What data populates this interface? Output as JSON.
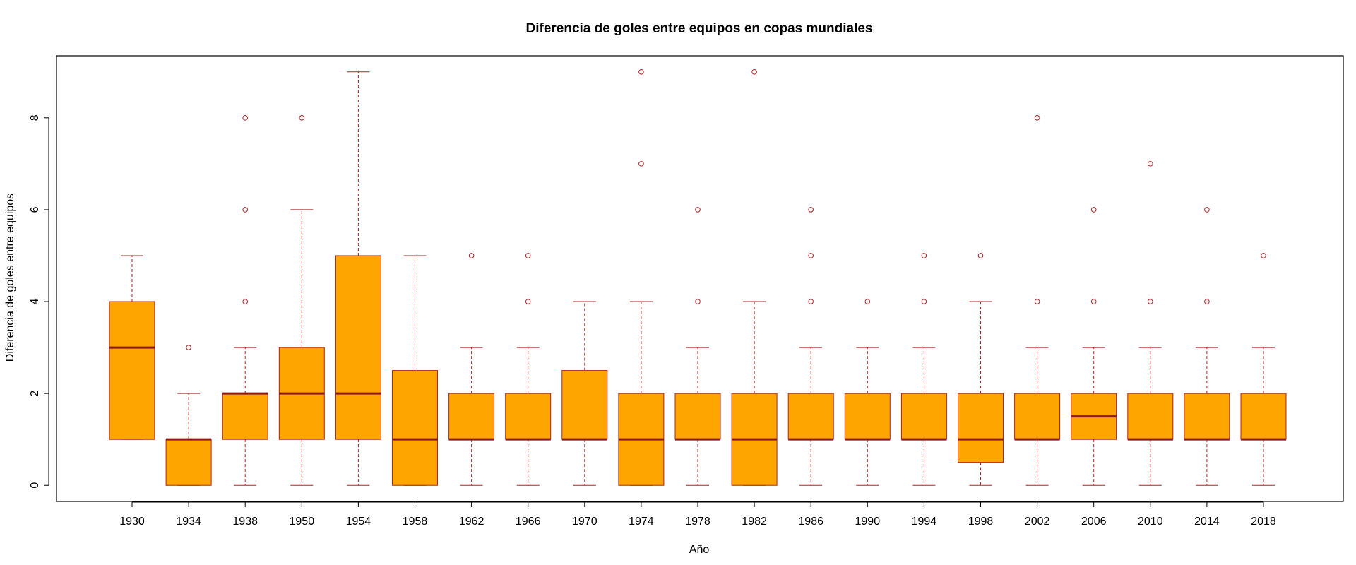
{
  "chart_data": {
    "type": "boxplot",
    "title": "Diferencia de goles entre equipos en copas mundiales",
    "xlabel": "Año",
    "ylabel": "Diferencia de goles entre equipos",
    "ylim": [
      -0.35,
      9.35
    ],
    "yticks": [
      "0",
      "2",
      "4",
      "6",
      "8"
    ],
    "colors": {
      "box_fill": "#FFA500",
      "stroke": "#B22222",
      "median": "#8B1A1A",
      "frame": "#000000"
    },
    "categories": [
      "1930",
      "1934",
      "1938",
      "1950",
      "1954",
      "1958",
      "1962",
      "1966",
      "1970",
      "1974",
      "1978",
      "1982",
      "1986",
      "1990",
      "1994",
      "1998",
      "2002",
      "2006",
      "2010",
      "2014",
      "2018"
    ],
    "boxes": [
      {
        "year": "1930",
        "whisker_low": 1,
        "q1": 1,
        "median": 3,
        "q3": 4,
        "whisker_high": 5,
        "outliers": []
      },
      {
        "year": "1934",
        "whisker_low": 0,
        "q1": 0,
        "median": 1,
        "q3": 1,
        "whisker_high": 2,
        "outliers": [
          3
        ]
      },
      {
        "year": "1938",
        "whisker_low": 0,
        "q1": 1,
        "median": 2,
        "q3": 2,
        "whisker_high": 3,
        "outliers": [
          4,
          6,
          8
        ]
      },
      {
        "year": "1950",
        "whisker_low": 0,
        "q1": 1,
        "median": 2,
        "q3": 3,
        "whisker_high": 6,
        "outliers": [
          8
        ]
      },
      {
        "year": "1954",
        "whisker_low": 0,
        "q1": 1,
        "median": 2,
        "q3": 5,
        "whisker_high": 9,
        "outliers": []
      },
      {
        "year": "1958",
        "whisker_low": 0,
        "q1": 0,
        "median": 1,
        "q3": 2.5,
        "whisker_high": 5,
        "outliers": []
      },
      {
        "year": "1962",
        "whisker_low": 0,
        "q1": 1,
        "median": 1,
        "q3": 2,
        "whisker_high": 3,
        "outliers": [
          5
        ]
      },
      {
        "year": "1966",
        "whisker_low": 0,
        "q1": 1,
        "median": 1,
        "q3": 2,
        "whisker_high": 3,
        "outliers": [
          4,
          5
        ]
      },
      {
        "year": "1970",
        "whisker_low": 0,
        "q1": 1,
        "median": 1,
        "q3": 2.5,
        "whisker_high": 4,
        "outliers": []
      },
      {
        "year": "1974",
        "whisker_low": 0,
        "q1": 0,
        "median": 1,
        "q3": 2,
        "whisker_high": 4,
        "outliers": [
          7,
          9
        ]
      },
      {
        "year": "1978",
        "whisker_low": 0,
        "q1": 1,
        "median": 1,
        "q3": 2,
        "whisker_high": 3,
        "outliers": [
          4,
          6
        ]
      },
      {
        "year": "1982",
        "whisker_low": 0,
        "q1": 0,
        "median": 1,
        "q3": 2,
        "whisker_high": 4,
        "outliers": [
          9
        ]
      },
      {
        "year": "1986",
        "whisker_low": 0,
        "q1": 1,
        "median": 1,
        "q3": 2,
        "whisker_high": 3,
        "outliers": [
          4,
          5,
          6
        ]
      },
      {
        "year": "1990",
        "whisker_low": 0,
        "q1": 1,
        "median": 1,
        "q3": 2,
        "whisker_high": 3,
        "outliers": [
          4
        ]
      },
      {
        "year": "1994",
        "whisker_low": 0,
        "q1": 1,
        "median": 1,
        "q3": 2,
        "whisker_high": 3,
        "outliers": [
          4,
          5
        ]
      },
      {
        "year": "1998",
        "whisker_low": 0,
        "q1": 0.5,
        "median": 1,
        "q3": 2,
        "whisker_high": 4,
        "outliers": [
          5
        ]
      },
      {
        "year": "2002",
        "whisker_low": 0,
        "q1": 1,
        "median": 1,
        "q3": 2,
        "whisker_high": 3,
        "outliers": [
          4,
          8
        ]
      },
      {
        "year": "2006",
        "whisker_low": 0,
        "q1": 1,
        "median": 1.5,
        "q3": 2,
        "whisker_high": 3,
        "outliers": [
          4,
          6
        ]
      },
      {
        "year": "2010",
        "whisker_low": 0,
        "q1": 1,
        "median": 1,
        "q3": 2,
        "whisker_high": 3,
        "outliers": [
          4,
          7
        ]
      },
      {
        "year": "2014",
        "whisker_low": 0,
        "q1": 1,
        "median": 1,
        "q3": 2,
        "whisker_high": 3,
        "outliers": [
          4,
          6
        ]
      },
      {
        "year": "2018",
        "whisker_low": 0,
        "q1": 1,
        "median": 1,
        "q3": 2,
        "whisker_high": 3,
        "outliers": [
          5
        ]
      }
    ]
  }
}
